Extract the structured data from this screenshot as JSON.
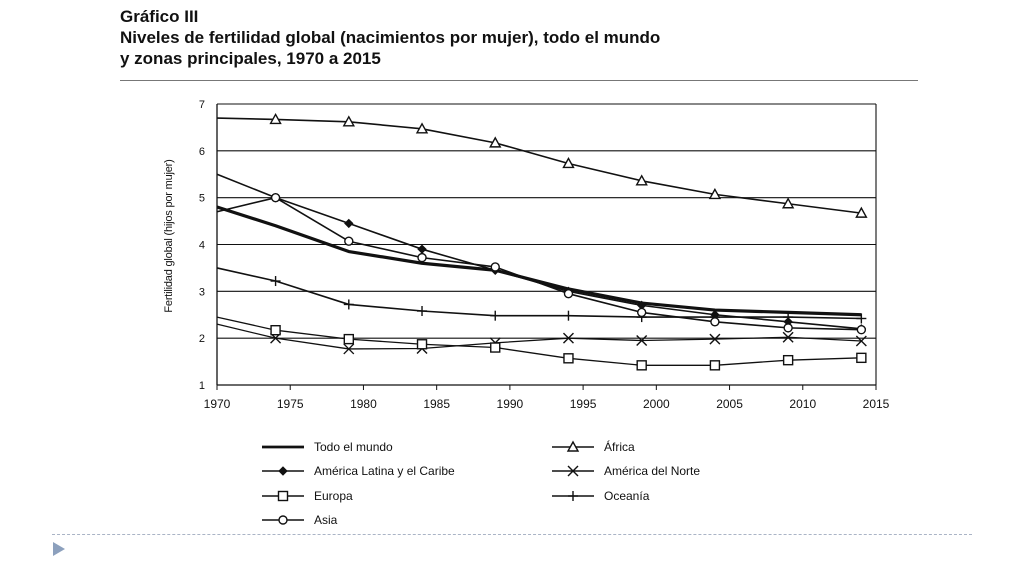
{
  "header": {
    "kicker": "Gráfico III",
    "title_line1": "Niveles de fertilidad global (nacimientos por mujer), todo el mundo",
    "title_line2": "y zonas principales, 1970 a 2015"
  },
  "chart_data": {
    "type": "line",
    "title": "Niveles de fertilidad global (nacimientos por mujer), todo el mundo y zonas principales, 1970 a 2015",
    "xlabel": "",
    "ylabel": "Fertilidad global (hijos por mujer)",
    "xlim": [
      1970,
      2015
    ],
    "ylim": [
      1,
      7
    ],
    "x_ticks": [
      1970,
      1975,
      1980,
      1985,
      1990,
      1995,
      2000,
      2005,
      2010,
      2015
    ],
    "y_ticks": [
      1,
      2,
      3,
      4,
      5,
      6,
      7
    ],
    "grid": "horizontal",
    "legend_position": "bottom",
    "x": [
      1970,
      1974,
      1979,
      1984,
      1989,
      1994,
      1999,
      2004,
      2009,
      2014
    ],
    "series": [
      {
        "name": "Todo el mundo",
        "marker": "none",
        "stroke_width": 3.2,
        "values": [
          4.8,
          4.4,
          3.85,
          3.6,
          3.45,
          3.05,
          2.75,
          2.6,
          2.55,
          2.5
        ]
      },
      {
        "name": "África",
        "marker": "triangle",
        "stroke_width": 1.6,
        "values": [
          6.7,
          6.67,
          6.62,
          6.47,
          6.17,
          5.73,
          5.36,
          5.07,
          4.87,
          4.67
        ]
      },
      {
        "name": "América Latina y el Caribe",
        "marker": "diamond",
        "stroke_width": 1.6,
        "values": [
          5.5,
          5.0,
          4.45,
          3.9,
          3.45,
          3.0,
          2.7,
          2.5,
          2.35,
          2.2
        ]
      },
      {
        "name": "América del Norte",
        "marker": "x",
        "stroke_width": 1.3,
        "values": [
          2.3,
          2.0,
          1.77,
          1.78,
          1.9,
          2.0,
          1.95,
          1.98,
          2.02,
          1.94
        ]
      },
      {
        "name": "Europa",
        "marker": "square",
        "stroke_width": 1.3,
        "values": [
          2.45,
          2.17,
          1.98,
          1.87,
          1.8,
          1.57,
          1.42,
          1.42,
          1.53,
          1.58
        ]
      },
      {
        "name": "Oceanía",
        "marker": "plus",
        "stroke_width": 1.6,
        "values": [
          3.5,
          3.22,
          2.72,
          2.58,
          2.48,
          2.48,
          2.45,
          2.45,
          2.45,
          2.42
        ]
      },
      {
        "name": "Asia",
        "marker": "circle",
        "stroke_width": 1.6,
        "values": [
          4.7,
          5.0,
          4.07,
          3.72,
          3.52,
          2.95,
          2.55,
          2.35,
          2.22,
          2.18
        ]
      }
    ]
  },
  "legend_order": [
    0,
    1,
    2,
    3,
    4,
    5,
    6
  ]
}
